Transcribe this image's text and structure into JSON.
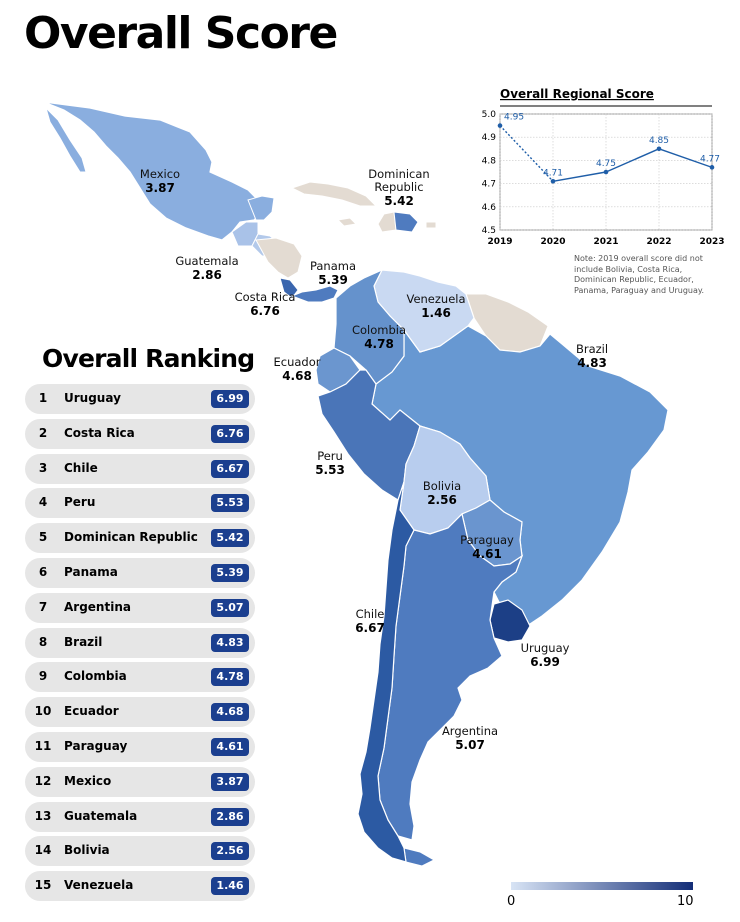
{
  "title": "Overall Score",
  "ranking_title": "Overall Ranking",
  "ranking": [
    {
      "rank": "1",
      "country": "Uruguay",
      "score": "6.99"
    },
    {
      "rank": "2",
      "country": "Costa Rica",
      "score": "6.76"
    },
    {
      "rank": "3",
      "country": "Chile",
      "score": "6.67"
    },
    {
      "rank": "4",
      "country": "Peru",
      "score": "5.53"
    },
    {
      "rank": "5",
      "country": "Dominican Republic",
      "score": "5.42"
    },
    {
      "rank": "6",
      "country": "Panama",
      "score": "5.39"
    },
    {
      "rank": "7",
      "country": "Argentina",
      "score": "5.07"
    },
    {
      "rank": "8",
      "country": "Brazil",
      "score": "4.83"
    },
    {
      "rank": "9",
      "country": "Colombia",
      "score": "4.78"
    },
    {
      "rank": "10",
      "country": "Ecuador",
      "score": "4.68"
    },
    {
      "rank": "11",
      "country": "Paraguay",
      "score": "4.61"
    },
    {
      "rank": "12",
      "country": "Mexico",
      "score": "3.87"
    },
    {
      "rank": "13",
      "country": "Guatemala",
      "score": "2.86"
    },
    {
      "rank": "14",
      "country": "Bolivia",
      "score": "2.56"
    },
    {
      "rank": "15",
      "country": "Venezuela",
      "score": "1.46"
    }
  ],
  "map_labels": {
    "mexico": {
      "name": "Mexico",
      "score": "3.87"
    },
    "guatemala": {
      "name": "Guatemala",
      "score": "2.86"
    },
    "dominican": {
      "name1": "Dominican",
      "name2": "Republic",
      "score": "5.42"
    },
    "panama": {
      "name": "Panama",
      "score": "5.39"
    },
    "costa_rica": {
      "name": "Costa Rica",
      "score": "6.76"
    },
    "venezuela": {
      "name": "Venezuela",
      "score": "1.46"
    },
    "colombia": {
      "name": "Colombia",
      "score": "4.78"
    },
    "ecuador": {
      "name": "Ecuador",
      "score": "4.68"
    },
    "brazil": {
      "name": "Brazil",
      "score": "4.83"
    },
    "peru": {
      "name": "Peru",
      "score": "5.53"
    },
    "bolivia": {
      "name": "Bolivia",
      "score": "2.56"
    },
    "paraguay": {
      "name": "Paraguay",
      "score": "4.61"
    },
    "chile": {
      "name": "Chile",
      "score": "6.67"
    },
    "uruguay": {
      "name": "Uruguay",
      "score": "6.99"
    },
    "argentina": {
      "name": "Argentina",
      "score": "5.07"
    }
  },
  "map_colors": {
    "mexico": "#8aaedf",
    "guatemala": "#a9c2e8",
    "central_other": "#b3c9ea",
    "costa_rica": "#3a66ae",
    "panama": "#4f7bbf",
    "venezuela": "#c9d9f2",
    "colombia": "#6592cc",
    "ecuador": "#6b96cf",
    "brazil": "#6798d2",
    "peru": "#4a75b8",
    "bolivia": "#b8cdee",
    "paraguay": "#6a95cf",
    "chile": "#2c5aa3",
    "uruguay": "#1c3f86",
    "argentina": "#4f7bbf",
    "no_data": "#e3dbd2"
  },
  "chart_data": {
    "type": "line",
    "title": "Overall Regional Score",
    "categories": [
      "2019",
      "2020",
      "2021",
      "2022",
      "2023"
    ],
    "values": [
      4.95,
      4.71,
      4.75,
      4.85,
      4.77
    ],
    "value_labels": [
      "4.95",
      "4.71",
      "4.75",
      "4.85",
      "4.77"
    ],
    "ylim": [
      4.5,
      5.0
    ],
    "yticks": [
      "5.0",
      "4.9",
      "4.8",
      "4.7",
      "4.6",
      "4.5"
    ],
    "grid": true,
    "first_segment_dotted": true,
    "color": "#1f5ea8",
    "note": "Note: 2019 overall score did not include Bolivia, Costa Rica, Dominican Republic, Ecuador, Panama, Paraguay and Uruguay."
  },
  "legend": {
    "min": "0",
    "max": "10",
    "low_color": "#d8e4f5",
    "high_color": "#132d77"
  }
}
